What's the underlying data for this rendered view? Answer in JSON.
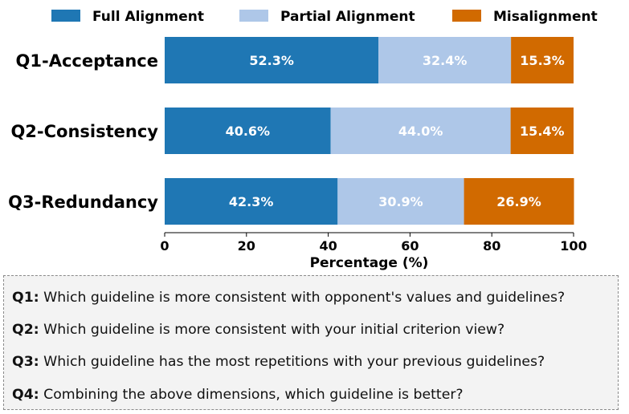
{
  "chart_data": {
    "type": "bar",
    "orientation": "horizontal",
    "stacked": true,
    "categories": [
      "Q1-Acceptance",
      "Q2-Consistency",
      "Q3-Redundancy"
    ],
    "series": [
      {
        "name": "Full Alignment",
        "color": "#1f77b4",
        "values": [
          52.3,
          40.6,
          42.3
        ],
        "labels": [
          "52.3%",
          "40.6%",
          "42.3%"
        ]
      },
      {
        "name": "Partial Alignment",
        "color": "#aec7e8",
        "values": [
          32.4,
          44.0,
          30.9
        ],
        "labels": [
          "32.4%",
          "44.0%",
          "30.9%"
        ]
      },
      {
        "name": "Misalignment",
        "color": "#d16a00",
        "values": [
          15.3,
          15.4,
          26.9
        ],
        "labels": [
          "15.3%",
          "15.4%",
          "26.9%"
        ]
      }
    ],
    "xlabel": "Percentage (%)",
    "xlim": [
      0,
      100
    ],
    "xticks": [
      0,
      20,
      40,
      60,
      80,
      100
    ],
    "xtick_labels": [
      "0",
      "20",
      "40",
      "60",
      "80",
      "100"
    ],
    "legend_position": "top",
    "grid": false
  },
  "questions": [
    {
      "key": "Q1:",
      "text": "Which guideline is more consistent with opponent's values and guidelines?"
    },
    {
      "key": "Q2:",
      "text": "Which guideline is more consistent with your initial criterion view?"
    },
    {
      "key": "Q3:",
      "text": "Which guideline has the most repetitions with your previous guidelines?"
    },
    {
      "key": "Q4:",
      "text": "Combining the above dimensions, which guideline is better?"
    }
  ]
}
